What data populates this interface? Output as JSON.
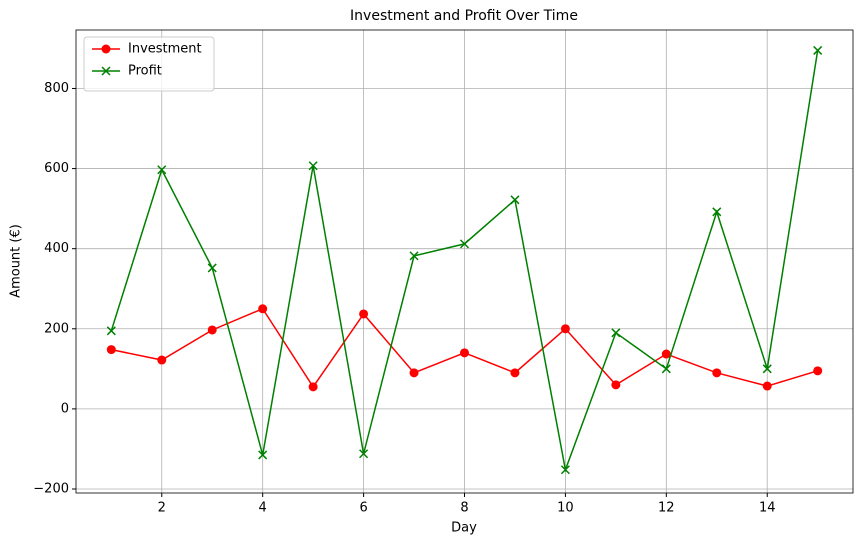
{
  "chart_data": {
    "type": "line",
    "title": "Investment and Profit Over Time",
    "xlabel": "Day",
    "ylabel": "Amount (€)",
    "x": [
      1,
      2,
      3,
      4,
      5,
      6,
      7,
      8,
      9,
      10,
      11,
      12,
      13,
      14,
      15
    ],
    "series": [
      {
        "name": "Investment",
        "color": "#ff0000",
        "marker": "o",
        "values": [
          148,
          122,
          197,
          250,
          55,
          237,
          90,
          140,
          90,
          200,
          60,
          137,
          90,
          57,
          95
        ]
      },
      {
        "name": "Profit",
        "color": "#008000",
        "marker": "x",
        "values": [
          195,
          597,
          352,
          -115,
          607,
          -112,
          382,
          412,
          522,
          -152,
          190,
          100,
          492,
          100,
          895
        ]
      }
    ],
    "xlim": [
      0.3,
      15.7
    ],
    "ylim": [
      -210,
      946
    ],
    "xticks": [
      2,
      4,
      6,
      8,
      10,
      12,
      14
    ],
    "yticks": [
      {
        "value": -200,
        "label": "−200"
      },
      0,
      200,
      400,
      600,
      800
    ],
    "grid": true,
    "legend": "upper-left"
  }
}
